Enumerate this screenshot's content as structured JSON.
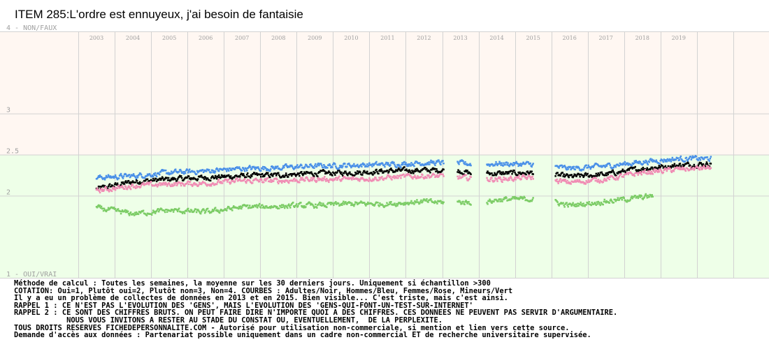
{
  "chart_data": {
    "type": "scatter",
    "title": "ITEM 285:L'ordre est ennuyeux, j'ai besoin de fantaisie",
    "ylim": [
      1,
      4
    ],
    "x_start": 2002.5,
    "x_end": 2020.5,
    "years": [
      "2003",
      "2004",
      "2005",
      "2006",
      "2007",
      "2008",
      "2009",
      "2010",
      "2011",
      "2012",
      "2013",
      "2014",
      "2015",
      "2016",
      "2017",
      "2018",
      "2019"
    ],
    "y_ticks": [
      {
        "value": 4,
        "label": "4 - NON/FAUX"
      },
      {
        "value": 3,
        "label": "3"
      },
      {
        "value": 2.5,
        "label": "2.5"
      },
      {
        "value": 2,
        "label": "2"
      },
      {
        "value": 1,
        "label": "1 - OUI/VRAI"
      }
    ],
    "background": {
      "upper_color": "#fff7f2",
      "lower_color": "#eeffe8",
      "split_value": 2.5,
      "grid_color": "#d2d2d2"
    },
    "gaps": [
      [
        2012.55,
        2012.92
      ],
      [
        2013.3,
        2013.72
      ],
      [
        2015.0,
        2015.6
      ]
    ],
    "series": [
      {
        "key": "adultes",
        "color": "#000000",
        "size": 2.5,
        "anchors": [
          [
            2003.0,
            2.08
          ],
          [
            2004.0,
            2.17
          ],
          [
            2005.0,
            2.2
          ],
          [
            2006.0,
            2.22
          ],
          [
            2007.0,
            2.24
          ],
          [
            2008.0,
            2.25
          ],
          [
            2009.0,
            2.27
          ],
          [
            2010.0,
            2.28
          ],
          [
            2011.0,
            2.3
          ],
          [
            2012.0,
            2.31
          ],
          [
            2012.9,
            2.31
          ],
          [
            2013.3,
            2.27
          ],
          [
            2014.0,
            2.27
          ],
          [
            2015.0,
            2.28
          ],
          [
            2016.0,
            2.23
          ],
          [
            2017.0,
            2.26
          ],
          [
            2018.0,
            2.33
          ],
          [
            2019.0,
            2.37
          ],
          [
            2019.9,
            2.39
          ]
        ]
      },
      {
        "key": "hommes",
        "color": "#4a90e8",
        "size": 2.5,
        "anchors": [
          [
            2003.0,
            2.22
          ],
          [
            2004.0,
            2.24
          ],
          [
            2005.0,
            2.28
          ],
          [
            2006.0,
            2.3
          ],
          [
            2007.0,
            2.33
          ],
          [
            2008.0,
            2.34
          ],
          [
            2009.0,
            2.36
          ],
          [
            2010.0,
            2.37
          ],
          [
            2011.0,
            2.38
          ],
          [
            2012.0,
            2.4
          ],
          [
            2012.55,
            2.4
          ],
          [
            2013.7,
            2.38
          ],
          [
            2014.0,
            2.39
          ],
          [
            2015.0,
            2.38
          ],
          [
            2016.0,
            2.33
          ],
          [
            2017.0,
            2.36
          ],
          [
            2018.0,
            2.41
          ],
          [
            2019.0,
            2.45
          ],
          [
            2019.9,
            2.45
          ]
        ]
      },
      {
        "key": "femmes",
        "color": "#f08cb4",
        "size": 2.5,
        "anchors": [
          [
            2003.0,
            2.06
          ],
          [
            2004.0,
            2.12
          ],
          [
            2005.0,
            2.14
          ],
          [
            2006.0,
            2.15
          ],
          [
            2007.0,
            2.18
          ],
          [
            2008.0,
            2.18
          ],
          [
            2009.0,
            2.2
          ],
          [
            2010.0,
            2.2
          ],
          [
            2011.0,
            2.22
          ],
          [
            2012.0,
            2.24
          ],
          [
            2012.2,
            2.24
          ],
          [
            2013.7,
            2.2
          ],
          [
            2014.0,
            2.2
          ],
          [
            2015.0,
            2.22
          ],
          [
            2016.0,
            2.16
          ],
          [
            2017.0,
            2.2
          ],
          [
            2018.0,
            2.28
          ],
          [
            2019.0,
            2.32
          ],
          [
            2019.9,
            2.34
          ]
        ]
      },
      {
        "key": "mineurs",
        "color": "#7ccc66",
        "size": 2.5,
        "anchors": [
          [
            2003.0,
            1.85
          ],
          [
            2004.0,
            1.78
          ],
          [
            2005.0,
            1.82
          ],
          [
            2006.0,
            1.8
          ],
          [
            2007.0,
            1.86
          ],
          [
            2008.0,
            1.87
          ],
          [
            2009.0,
            1.88
          ],
          [
            2010.0,
            1.9
          ],
          [
            2011.0,
            1.9
          ],
          [
            2012.0,
            1.93
          ],
          [
            2012.2,
            1.92
          ],
          [
            2013.7,
            1.92
          ],
          [
            2014.0,
            1.95
          ],
          [
            2014.9,
            1.96
          ],
          [
            2015.6,
            1.92
          ],
          [
            2016.0,
            1.88
          ],
          [
            2017.0,
            1.93
          ],
          [
            2018.0,
            1.98
          ],
          [
            2018.3,
            2.0
          ]
        ]
      }
    ]
  },
  "notes": [
    "Méthode de calcul : Toutes les semaines, la moyenne sur les 30 derniers jours. Uniquement si échantillon >300",
    "COTATION: Oui=1, Plutôt oui=2, Plutôt non=3, Non=4. COURBES : Adultes/Noir, Hommes/Bleu, Femmes/Rose, Mineurs/Vert",
    "Il y a eu un problème de collectes de données en 2013 et en 2015. Bien visible... C'est triste, mais c'est ainsi.",
    "RAPPEL 1 : CE N'EST PAS L'EVOLUTION DES 'GENS', MAIS L'EVOLUTION DES 'GENS-QUI-FONT-UN-TEST-SUR-INTERNET'",
    "RAPPEL 2 : CE SONT DES CHIFFRES BRUTS. ON PEUT FAIRE DIRE N'IMPORTE QUOI A DES CHIFFRES. CES DONNEES NE PEUVENT PAS SERVIR D'ARGUMENTAIRE.",
    "            NOUS VOUS INVITONS A RESTER AU STADE DU CONSTAT OU, EVENTUELLEMENT,  DE LA PERPLEXITE.",
    "TOUS DROITS RESERVES FICHEDEPERSONNALITE.COM - Autorisé pour utilisation non-commerciale, si mention et lien vers cette source.",
    "Demande d'accès aux données : Partenariat possible uniquement dans un cadre non-commercial ET de recherche universitaire supervisée."
  ]
}
